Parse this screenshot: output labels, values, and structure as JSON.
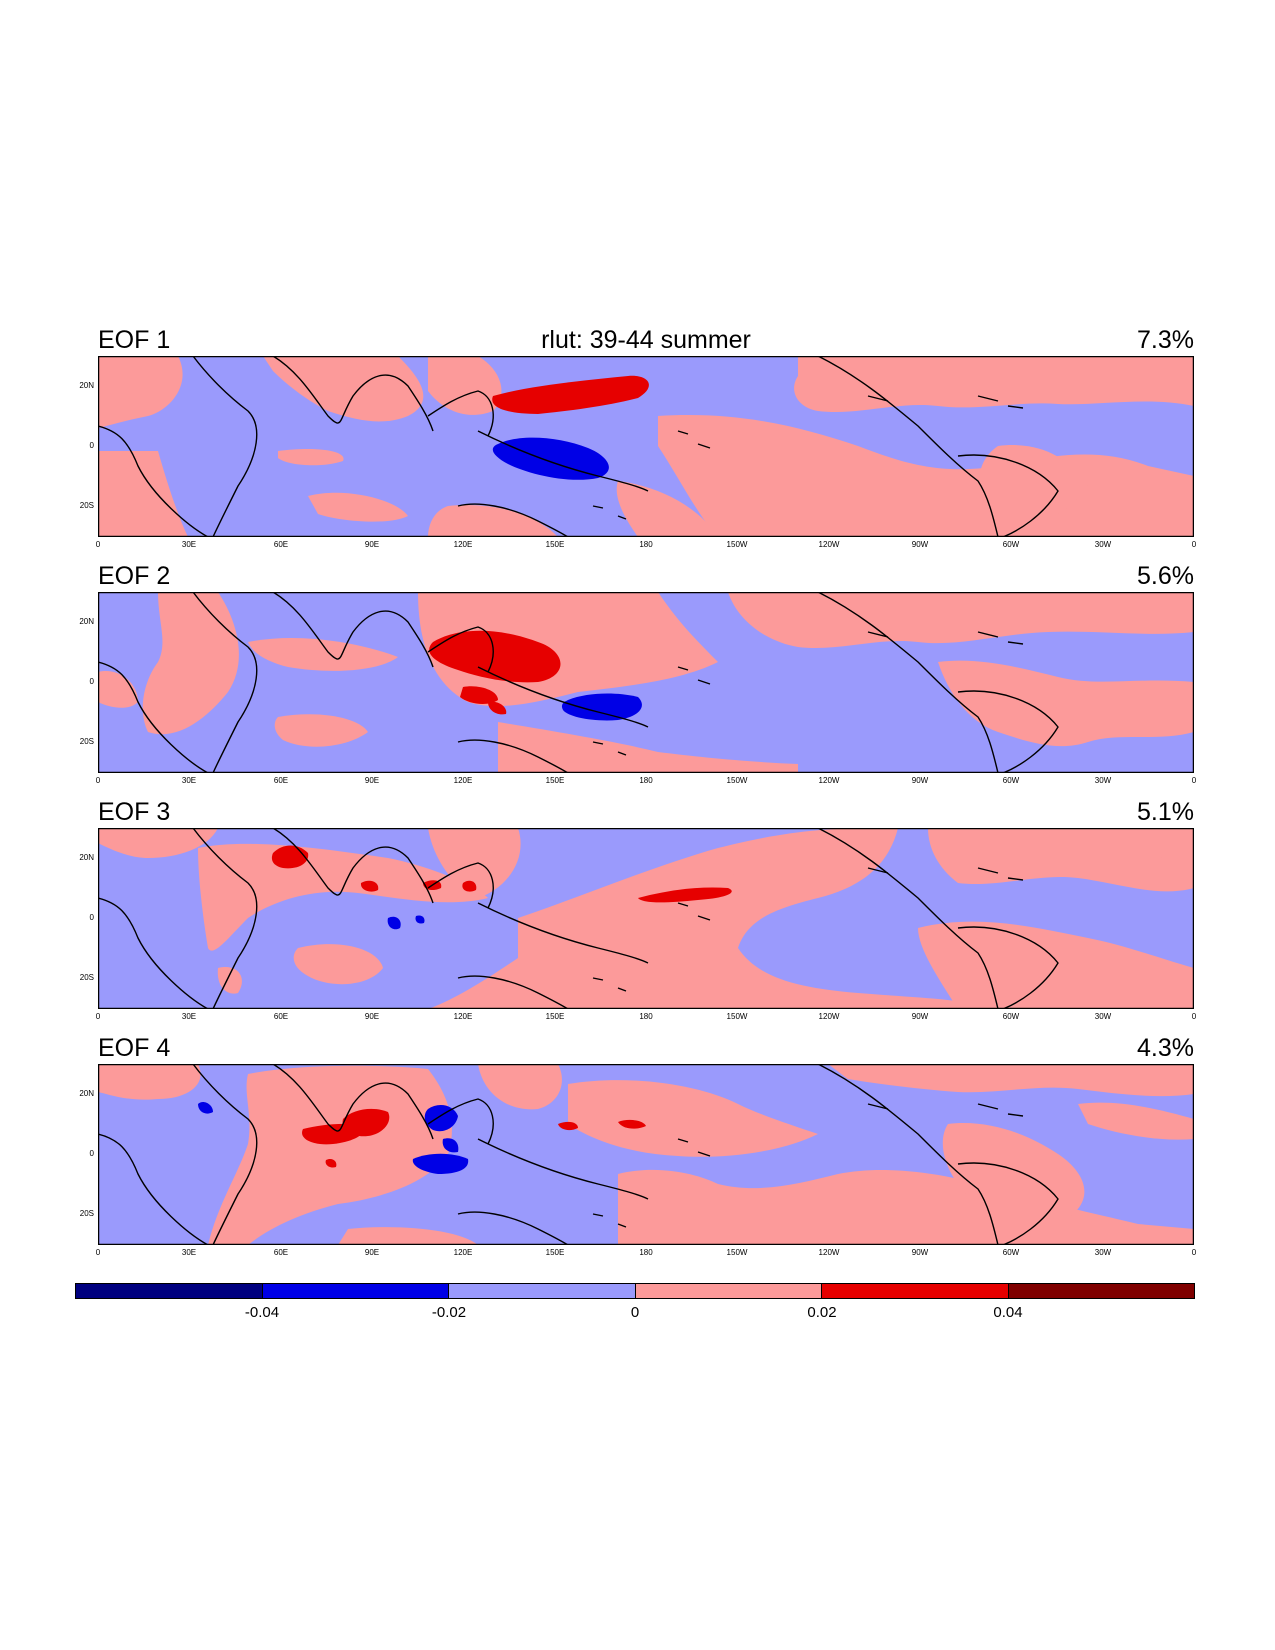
{
  "title": "rlut: 39-44 summer",
  "panels": [
    {
      "label": "EOF 1",
      "percent": "7.3%"
    },
    {
      "label": "EOF 2",
      "percent": "5.6%"
    },
    {
      "label": "EOF 3",
      "percent": "5.1%"
    },
    {
      "label": "EOF 4",
      "percent": "4.3%"
    }
  ],
  "lat_labels": [
    "20N",
    "0",
    "20S"
  ],
  "lon_labels": [
    "0",
    "30E",
    "60E",
    "90E",
    "120E",
    "150E",
    "180",
    "150W",
    "120W",
    "90W",
    "60W",
    "30W",
    "0"
  ],
  "colorbar": {
    "colors": [
      "#00007f",
      "#0000e6",
      "#9a9afc",
      "#fc9a9a",
      "#e60000",
      "#7f0000"
    ],
    "labels": [
      "-0.04",
      "-0.02",
      "0",
      "0.02",
      "0.04"
    ]
  },
  "colors": {
    "negative_fill": "#9a9afc",
    "positive_fill": "#fc9a9a",
    "strong_negative": "#0000e6",
    "strong_positive": "#e60000"
  }
}
